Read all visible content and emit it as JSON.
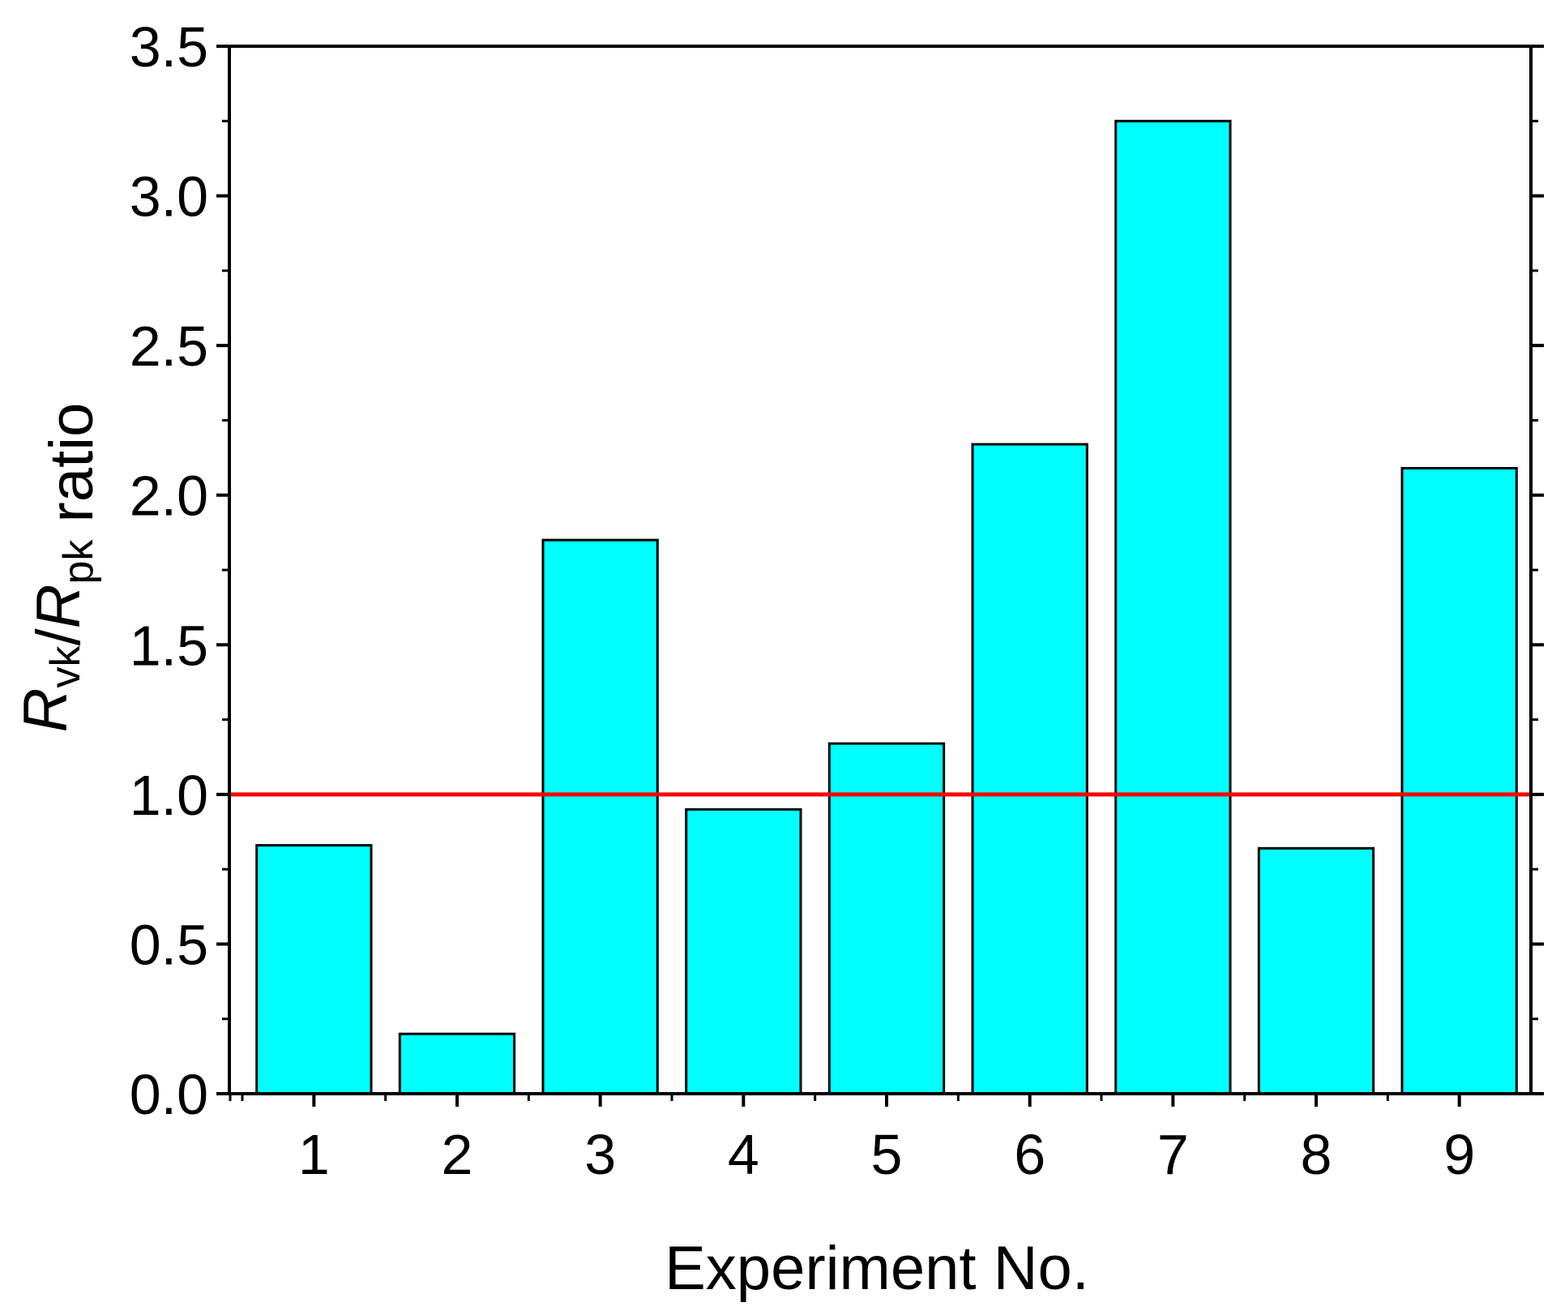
{
  "chart_data": {
    "type": "bar",
    "categories": [
      "1",
      "2",
      "3",
      "4",
      "5",
      "6",
      "7",
      "8",
      "9"
    ],
    "series": [
      {
        "values": [
          0.83,
          0.2,
          1.85,
          0.95,
          1.17,
          2.17,
          3.25,
          0.82,
          2.09
        ],
        "color": "#00FFFF"
      }
    ],
    "ylim": [
      0,
      3.5
    ],
    "yticks": [
      "0.0",
      "0.5",
      "1.0",
      "1.5",
      "2.0",
      "2.5",
      "3.0",
      "3.5"
    ],
    "ytick_values": [
      0,
      0.5,
      1.0,
      1.5,
      2.0,
      2.5,
      3.0,
      3.5
    ],
    "xlabel": "Experiment No.",
    "ylabel": {
      "parts": [
        {
          "text": "R",
          "style": "italic"
        },
        {
          "text": "vk",
          "style": "sub"
        },
        {
          "text": "/",
          "style": "normal"
        },
        {
          "text": "R",
          "style": "italic"
        },
        {
          "text": "pk",
          "style": "sub"
        },
        {
          "text": " ratio",
          "style": "normal"
        }
      ]
    },
    "reference_line": {
      "y": 1.0,
      "color": "#FF0000"
    },
    "grid": false,
    "legend": "none",
    "bar_edge_color": "#000000"
  }
}
